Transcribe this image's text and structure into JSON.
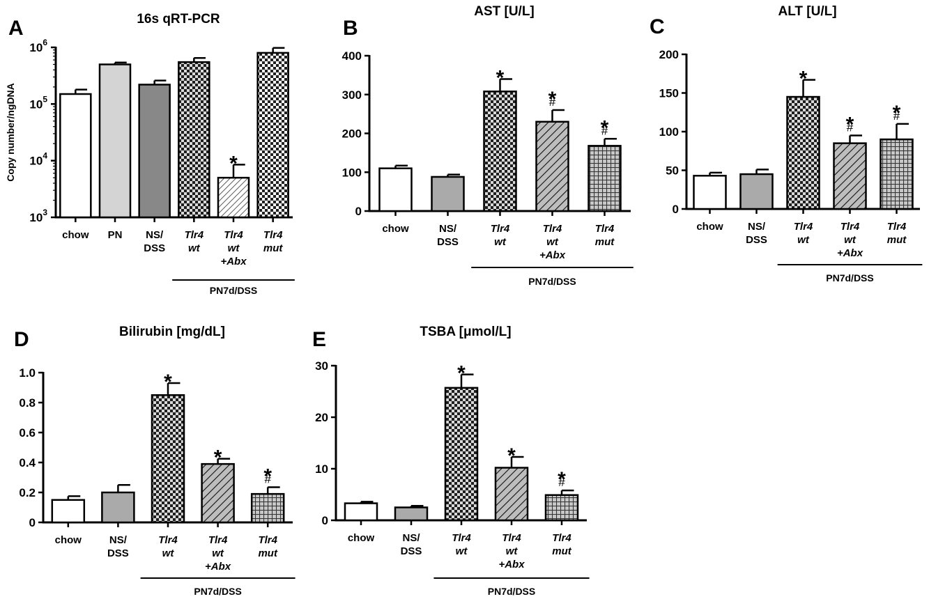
{
  "colors": {
    "white": "#ffffff",
    "light_gray": "#d4d4d4",
    "mid_gray": "#aaaaaa",
    "dark_gray": "#888888",
    "checker_dark": "#2a2a2a",
    "black": "#000000"
  },
  "chart_data": [
    {
      "panel": "A",
      "type": "bar",
      "title": "16s qRT-PCR",
      "ylabel": "Copy number/ngDNA",
      "yscale": "log",
      "ylim": [
        1000,
        1000000
      ],
      "yticks": [
        {
          "value": 1000,
          "base": "10",
          "exp": "3"
        },
        {
          "value": 10000,
          "base": "10",
          "exp": "4"
        },
        {
          "value": 100000,
          "base": "10",
          "exp": "5"
        },
        {
          "value": 1000000,
          "base": "10",
          "exp": "6"
        }
      ],
      "categories": [
        {
          "lines": [
            "chow"
          ],
          "italic": false
        },
        {
          "lines": [
            "PN"
          ],
          "italic": false
        },
        {
          "lines": [
            "NS/",
            "DSS"
          ],
          "italic": false
        },
        {
          "lines": [
            "Tlr4",
            "wt"
          ],
          "italic": true
        },
        {
          "lines": [
            "Tlr4",
            "wt",
            "+Abx"
          ],
          "italic": true
        },
        {
          "lines": [
            "Tlr4",
            "mut"
          ],
          "italic": true
        }
      ],
      "values": [
        150000,
        500000,
        220000,
        550000,
        5000,
        800000
      ],
      "errors": [
        30000,
        40000,
        40000,
        100000,
        3500,
        180000
      ],
      "fills": [
        "white",
        "lightgray",
        "gray",
        "checker",
        "diagonal",
        "checker-light"
      ],
      "annotations": [
        {
          "index": 4,
          "text": "*"
        }
      ],
      "group_label": "PN7d/DSS",
      "group_range": [
        3,
        5
      ]
    },
    {
      "panel": "B",
      "type": "bar",
      "title": "AST [U/L]",
      "ylabel": "",
      "ylim": [
        0,
        400
      ],
      "yticks": [
        0,
        100,
        200,
        300,
        400
      ],
      "categories": [
        {
          "lines": [
            "chow"
          ],
          "italic": false
        },
        {
          "lines": [
            "NS/",
            "DSS"
          ],
          "italic": false
        },
        {
          "lines": [
            "Tlr4",
            "wt"
          ],
          "italic": true
        },
        {
          "lines": [
            "Tlr4",
            "wt",
            "+Abx"
          ],
          "italic": true
        },
        {
          "lines": [
            "Tlr4",
            "mut"
          ],
          "italic": true
        }
      ],
      "values": [
        110,
        88,
        308,
        230,
        168
      ],
      "errors": [
        7,
        6,
        32,
        30,
        18
      ],
      "fills": [
        "white",
        "midgray",
        "checker",
        "diagonal",
        "grid"
      ],
      "annotations": [
        {
          "index": 2,
          "text": "*"
        },
        {
          "index": 3,
          "text": "*",
          "hash": "#"
        },
        {
          "index": 4,
          "text": "*",
          "hash": "#"
        }
      ],
      "group_label": "PN7d/DSS",
      "group_range": [
        2,
        4
      ]
    },
    {
      "panel": "C",
      "type": "bar",
      "title": "ALT [U/L]",
      "ylabel": "",
      "ylim": [
        0,
        200
      ],
      "yticks": [
        0,
        50,
        100,
        150,
        200
      ],
      "categories": [
        {
          "lines": [
            "chow"
          ],
          "italic": false
        },
        {
          "lines": [
            "NS/",
            "DSS"
          ],
          "italic": false
        },
        {
          "lines": [
            "Tlr4",
            "wt"
          ],
          "italic": true
        },
        {
          "lines": [
            "Tlr4",
            "wt",
            "+Abx"
          ],
          "italic": true
        },
        {
          "lines": [
            "Tlr4",
            "mut"
          ],
          "italic": true
        }
      ],
      "values": [
        43,
        45,
        145,
        85,
        90
      ],
      "errors": [
        4,
        6,
        22,
        10,
        20
      ],
      "fills": [
        "white",
        "midgray",
        "checker",
        "diagonal",
        "grid"
      ],
      "annotations": [
        {
          "index": 2,
          "text": "*"
        },
        {
          "index": 3,
          "text": "*",
          "hash": "#"
        },
        {
          "index": 4,
          "text": "*",
          "hash": "#"
        }
      ],
      "group_label": "PN7d/DSS",
      "group_range": [
        2,
        4
      ]
    },
    {
      "panel": "D",
      "type": "bar",
      "title": "Bilirubin [mg/dL]",
      "ylabel": "",
      "ylim": [
        0,
        1.0
      ],
      "yticks": [
        "0",
        "0.2",
        "0.4",
        "0.6",
        "0.8",
        "1.0"
      ],
      "categories": [
        {
          "lines": [
            "chow"
          ],
          "italic": false
        },
        {
          "lines": [
            "NS/",
            "DSS"
          ],
          "italic": false
        },
        {
          "lines": [
            "Tlr4",
            "wt"
          ],
          "italic": true
        },
        {
          "lines": [
            "Tlr4",
            "wt",
            "+Abx"
          ],
          "italic": true
        },
        {
          "lines": [
            "Tlr4",
            "mut"
          ],
          "italic": true
        }
      ],
      "values": [
        0.15,
        0.2,
        0.85,
        0.39,
        0.19
      ],
      "errors": [
        0.025,
        0.05,
        0.08,
        0.035,
        0.045
      ],
      "fills": [
        "white",
        "midgray",
        "checker",
        "diagonal",
        "grid"
      ],
      "annotations": [
        {
          "index": 2,
          "text": "*"
        },
        {
          "index": 3,
          "text": "*"
        },
        {
          "index": 4,
          "text": "*",
          "hash": "#"
        }
      ],
      "group_label": "PN7d/DSS",
      "group_range": [
        2,
        4
      ]
    },
    {
      "panel": "E",
      "type": "bar",
      "title": "TSBA [μmol/L]",
      "ylabel": "",
      "ylim": [
        0,
        30
      ],
      "yticks": [
        0,
        10,
        20,
        30
      ],
      "categories": [
        {
          "lines": [
            "chow"
          ],
          "italic": false
        },
        {
          "lines": [
            "NS/",
            "DSS"
          ],
          "italic": false
        },
        {
          "lines": [
            "Tlr4",
            "wt"
          ],
          "italic": true
        },
        {
          "lines": [
            "Tlr4",
            "wt",
            "+Abx"
          ],
          "italic": true
        },
        {
          "lines": [
            "Tlr4",
            "mut"
          ],
          "italic": true
        }
      ],
      "values": [
        3.3,
        2.5,
        25.7,
        10.2,
        4.9
      ],
      "errors": [
        0.3,
        0.3,
        2.6,
        2.1,
        0.9
      ],
      "fills": [
        "white",
        "midgray",
        "checker",
        "diagonal",
        "grid"
      ],
      "annotations": [
        {
          "index": 2,
          "text": "*"
        },
        {
          "index": 3,
          "text": "*"
        },
        {
          "index": 4,
          "text": "*",
          "hash": "#"
        }
      ],
      "group_label": "PN7d/DSS",
      "group_range": [
        2,
        4
      ]
    }
  ]
}
